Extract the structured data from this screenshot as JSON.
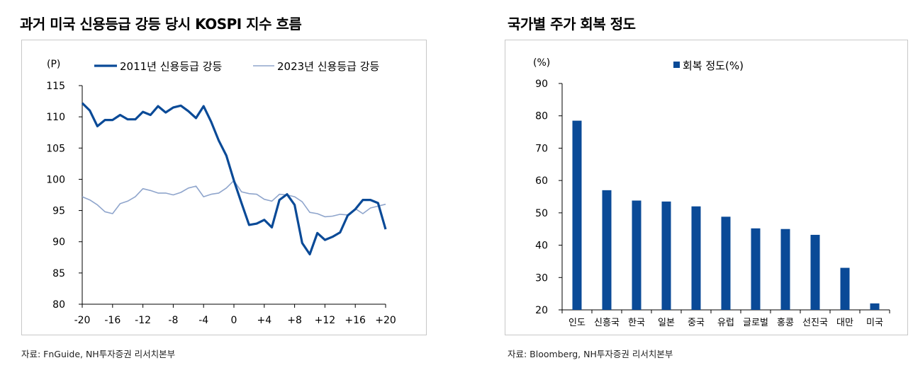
{
  "left": {
    "title": "과거 미국 신용등급 강등 당시 KOSPI 지수 흐름",
    "source": "자료: FnGuide, NH투자증권 리서치본부"
  },
  "right": {
    "title": "국가별 주가 회복 정도",
    "source": "자료: Bloomberg, NH투자증권 리서치본부"
  },
  "chart_data": [
    {
      "type": "line",
      "ylabel": "(P)",
      "ylim": [
        80,
        115
      ],
      "yticks": [
        80,
        85,
        90,
        95,
        100,
        105,
        110,
        115
      ],
      "xlim": [
        -20,
        20
      ],
      "xticks": [
        -20,
        -16,
        -12,
        -8,
        -4,
        0,
        4,
        8,
        12,
        16,
        20
      ],
      "xtick_labels": [
        "-20",
        "-16",
        "-12",
        "-8",
        "-4",
        "0",
        "+4",
        "+8",
        "+12",
        "+16",
        "+20"
      ],
      "grid": false,
      "legend": "top",
      "series": [
        {
          "name": "2011년 신용등급 강등",
          "color": "#0a4a97",
          "x": [
            -20,
            -19,
            -18,
            -17,
            -16,
            -15,
            -14,
            -13,
            -12,
            -11,
            -10,
            -9,
            -8,
            -7,
            -6,
            -5,
            -4,
            -3,
            -2,
            -1,
            0,
            1,
            2,
            3,
            4,
            5,
            6,
            7,
            8,
            9,
            10,
            11,
            12,
            13,
            14,
            15,
            16,
            17,
            18,
            19,
            20
          ],
          "values": [
            112.2,
            111.0,
            108.5,
            109.5,
            109.5,
            110.3,
            109.6,
            109.6,
            110.8,
            110.3,
            111.7,
            110.7,
            111.5,
            111.8,
            110.9,
            109.8,
            111.7,
            109.2,
            106.2,
            103.8,
            99.8,
            96.2,
            92.7,
            92.9,
            93.5,
            92.3,
            96.7,
            97.6,
            95.9,
            89.8,
            88.0,
            91.4,
            90.3,
            90.8,
            91.5,
            94.2,
            95.2,
            96.7,
            96.7,
            96.2,
            92.0
          ]
        },
        {
          "name": "2023년 신용등급 강등",
          "color": "#8fa5cc",
          "x": [
            -20,
            -19,
            -18,
            -17,
            -16,
            -15,
            -14,
            -13,
            -12,
            -11,
            -10,
            -9,
            -8,
            -7,
            -6,
            -5,
            -4,
            -3,
            -2,
            -1,
            0,
            1,
            2,
            3,
            4,
            5,
            6,
            7,
            8,
            9,
            10,
            11,
            12,
            13,
            14,
            15,
            16,
            17,
            18,
            19,
            20
          ],
          "values": [
            97.2,
            96.7,
            95.9,
            94.8,
            94.5,
            96.1,
            96.5,
            97.2,
            98.5,
            98.2,
            97.8,
            97.8,
            97.5,
            97.9,
            98.6,
            98.9,
            97.2,
            97.6,
            97.8,
            98.6,
            99.8,
            98.0,
            97.7,
            97.6,
            96.8,
            96.5,
            97.6,
            97.5,
            97.2,
            96.4,
            94.7,
            94.5,
            94.0,
            94.1,
            94.4,
            94.3,
            95.3,
            94.5,
            95.4,
            95.7,
            96.0
          ]
        }
      ]
    },
    {
      "type": "bar",
      "ylabel": "(%)",
      "ylim": [
        20,
        90
      ],
      "yticks": [
        20,
        30,
        40,
        50,
        60,
        70,
        80,
        90
      ],
      "grid": false,
      "legend": "top",
      "categories": [
        "인도",
        "신흥국",
        "한국",
        "일본",
        "중국",
        "유럽",
        "글로벌",
        "홍콩",
        "선진국",
        "대만",
        "미국"
      ],
      "series": [
        {
          "name": "회복 정도(%)",
          "color": "#0a4a97",
          "values": [
            78.5,
            57.0,
            53.8,
            53.5,
            52.0,
            48.8,
            45.2,
            45.0,
            43.2,
            33.0,
            22.0
          ]
        }
      ]
    }
  ]
}
